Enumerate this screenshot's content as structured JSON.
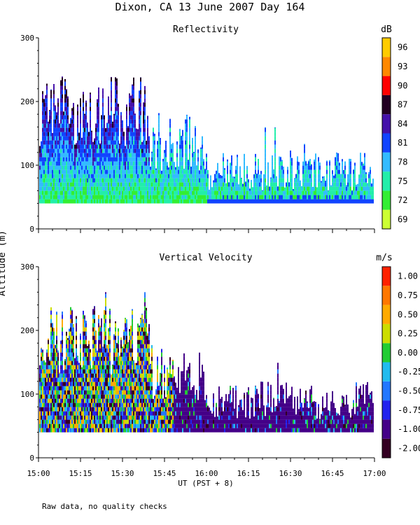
{
  "figure": {
    "title": "Dixon, CA 13 June 2007  Day 164",
    "ylabel": "Altitude (m)",
    "xlabel": "UT  (PST + 8)",
    "footnote": "Raw data, no quality checks"
  },
  "colors": {
    "reflectivity": [
      "#ccff33",
      "#33ee33",
      "#22eeaa",
      "#33bbff",
      "#1144ff",
      "#4411aa",
      "#220022",
      "#ff0000",
      "#ff8800",
      "#ffcc00"
    ],
    "velocity": [
      "#330022",
      "#440088",
      "#2222ee",
      "#2277ff",
      "#22bbee",
      "#22cc33",
      "#ccdd00",
      "#ffaa00",
      "#ff7700",
      "#ff2200"
    ]
  },
  "chart_data": [
    {
      "type": "heatmap",
      "title": "Reflectivity",
      "ylim": [
        0,
        300
      ],
      "yticks": [
        "0",
        "100",
        "200",
        "300"
      ],
      "xticks": [
        "15:00",
        "15:15",
        "15:30",
        "15:45",
        "16:00",
        "16:15",
        "16:30",
        "16:45",
        "17:00"
      ],
      "colorbar_unit": "dB",
      "colorbar_levels": [
        "69",
        "72",
        "75",
        "78",
        "81",
        "84",
        "87",
        "90",
        "93",
        "96"
      ],
      "data_floor_m": 40,
      "max_echo_top_m": 260
    },
    {
      "type": "heatmap",
      "title": "Vertical Velocity",
      "ylim": [
        0,
        300
      ],
      "yticks": [
        "0",
        "100",
        "200",
        "300"
      ],
      "xticks": [
        "15:00",
        "15:15",
        "15:30",
        "15:45",
        "16:00",
        "16:15",
        "16:30",
        "16:45",
        "17:00"
      ],
      "colorbar_unit": "m/s",
      "colorbar_levels": [
        "-2.00",
        "-1.00",
        "-0.75",
        "-0.50",
        "-0.25",
        "0.00",
        "0.25",
        "0.50",
        "0.75",
        "1.00"
      ],
      "data_floor_m": 40,
      "max_echo_top_m": 260
    }
  ]
}
